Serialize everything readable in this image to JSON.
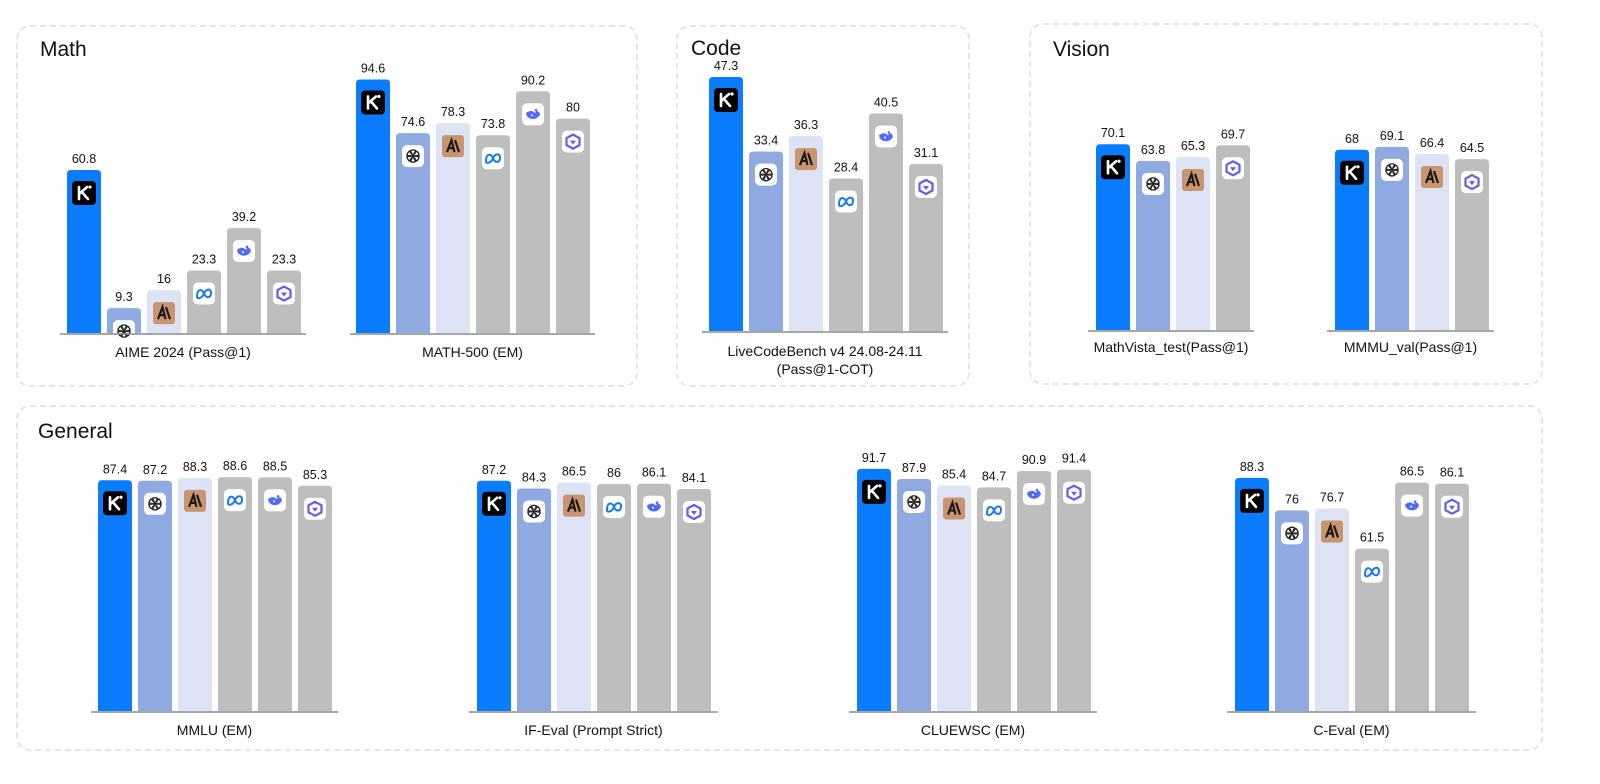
{
  "sections": {
    "math": "Math",
    "code": "Code",
    "vision": "Vision",
    "general": "General"
  },
  "models": [
    {
      "icon": "kimi-logo-icon",
      "color": "#0a7cff"
    },
    {
      "icon": "openai-logo-icon",
      "color": "#8eaae0"
    },
    {
      "icon": "anthropic-logo-icon",
      "color": "#dbe3f4"
    },
    {
      "icon": "meta-logo-icon",
      "color": "#bebebe"
    },
    {
      "icon": "deepseek-logo-icon",
      "color": "#bebebe"
    },
    {
      "icon": "qwen-logo-icon",
      "color": "#bebebe"
    }
  ],
  "chart_data": [
    {
      "type": "bar",
      "section": "math",
      "xlabel": "AIME 2024 (Pass@1)",
      "xlabel2": "",
      "models": [
        0,
        1,
        2,
        3,
        4,
        5
      ],
      "values": [
        60.8,
        9.3,
        16,
        23.3,
        39.2,
        23.3
      ]
    },
    {
      "type": "bar",
      "section": "math",
      "xlabel": "MATH-500 (EM)",
      "xlabel2": "",
      "models": [
        0,
        1,
        2,
        3,
        4,
        5
      ],
      "values": [
        94.6,
        74.6,
        78.3,
        73.8,
        90.2,
        80
      ]
    },
    {
      "type": "bar",
      "section": "code",
      "xlabel": "LiveCodeBench v4 24.08-24.11",
      "xlabel2": "(Pass@1-COT)",
      "models": [
        0,
        1,
        2,
        3,
        4,
        5
      ],
      "values": [
        47.3,
        33.4,
        36.3,
        28.4,
        40.5,
        31.1
      ]
    },
    {
      "type": "bar",
      "section": "vision",
      "xlabel": "MathVista_test(Pass@1)",
      "xlabel2": "",
      "models": [
        0,
        1,
        2,
        5
      ],
      "values": [
        70.1,
        63.8,
        65.3,
        69.7
      ]
    },
    {
      "type": "bar",
      "section": "vision",
      "xlabel": "MMMU_val(Pass@1)",
      "xlabel2": "",
      "models": [
        0,
        1,
        2,
        5
      ],
      "values": [
        68,
        69.1,
        66.4,
        64.5
      ]
    },
    {
      "type": "bar",
      "section": "general",
      "xlabel": "MMLU (EM)",
      "xlabel2": "",
      "models": [
        0,
        1,
        2,
        3,
        4,
        5
      ],
      "values": [
        87.4,
        87.2,
        88.3,
        88.6,
        88.5,
        85.3
      ]
    },
    {
      "type": "bar",
      "section": "general",
      "xlabel": "IF-Eval (Prompt Strict)",
      "xlabel2": "",
      "models": [
        0,
        1,
        2,
        3,
        4,
        5
      ],
      "values": [
        87.2,
        84.3,
        86.5,
        86,
        86.1,
        84.1
      ]
    },
    {
      "type": "bar",
      "section": "general",
      "xlabel": "CLUEWSC (EM)",
      "xlabel2": "",
      "models": [
        0,
        1,
        2,
        3,
        4,
        5
      ],
      "values": [
        91.7,
        87.9,
        85.4,
        84.7,
        90.9,
        91.4
      ]
    },
    {
      "type": "bar",
      "section": "general",
      "xlabel": "C-Eval (EM)",
      "xlabel2": "",
      "models": [
        0,
        1,
        2,
        3,
        4,
        5
      ],
      "values": [
        88.3,
        76,
        76.7,
        61.5,
        86.5,
        86.1
      ]
    }
  ]
}
